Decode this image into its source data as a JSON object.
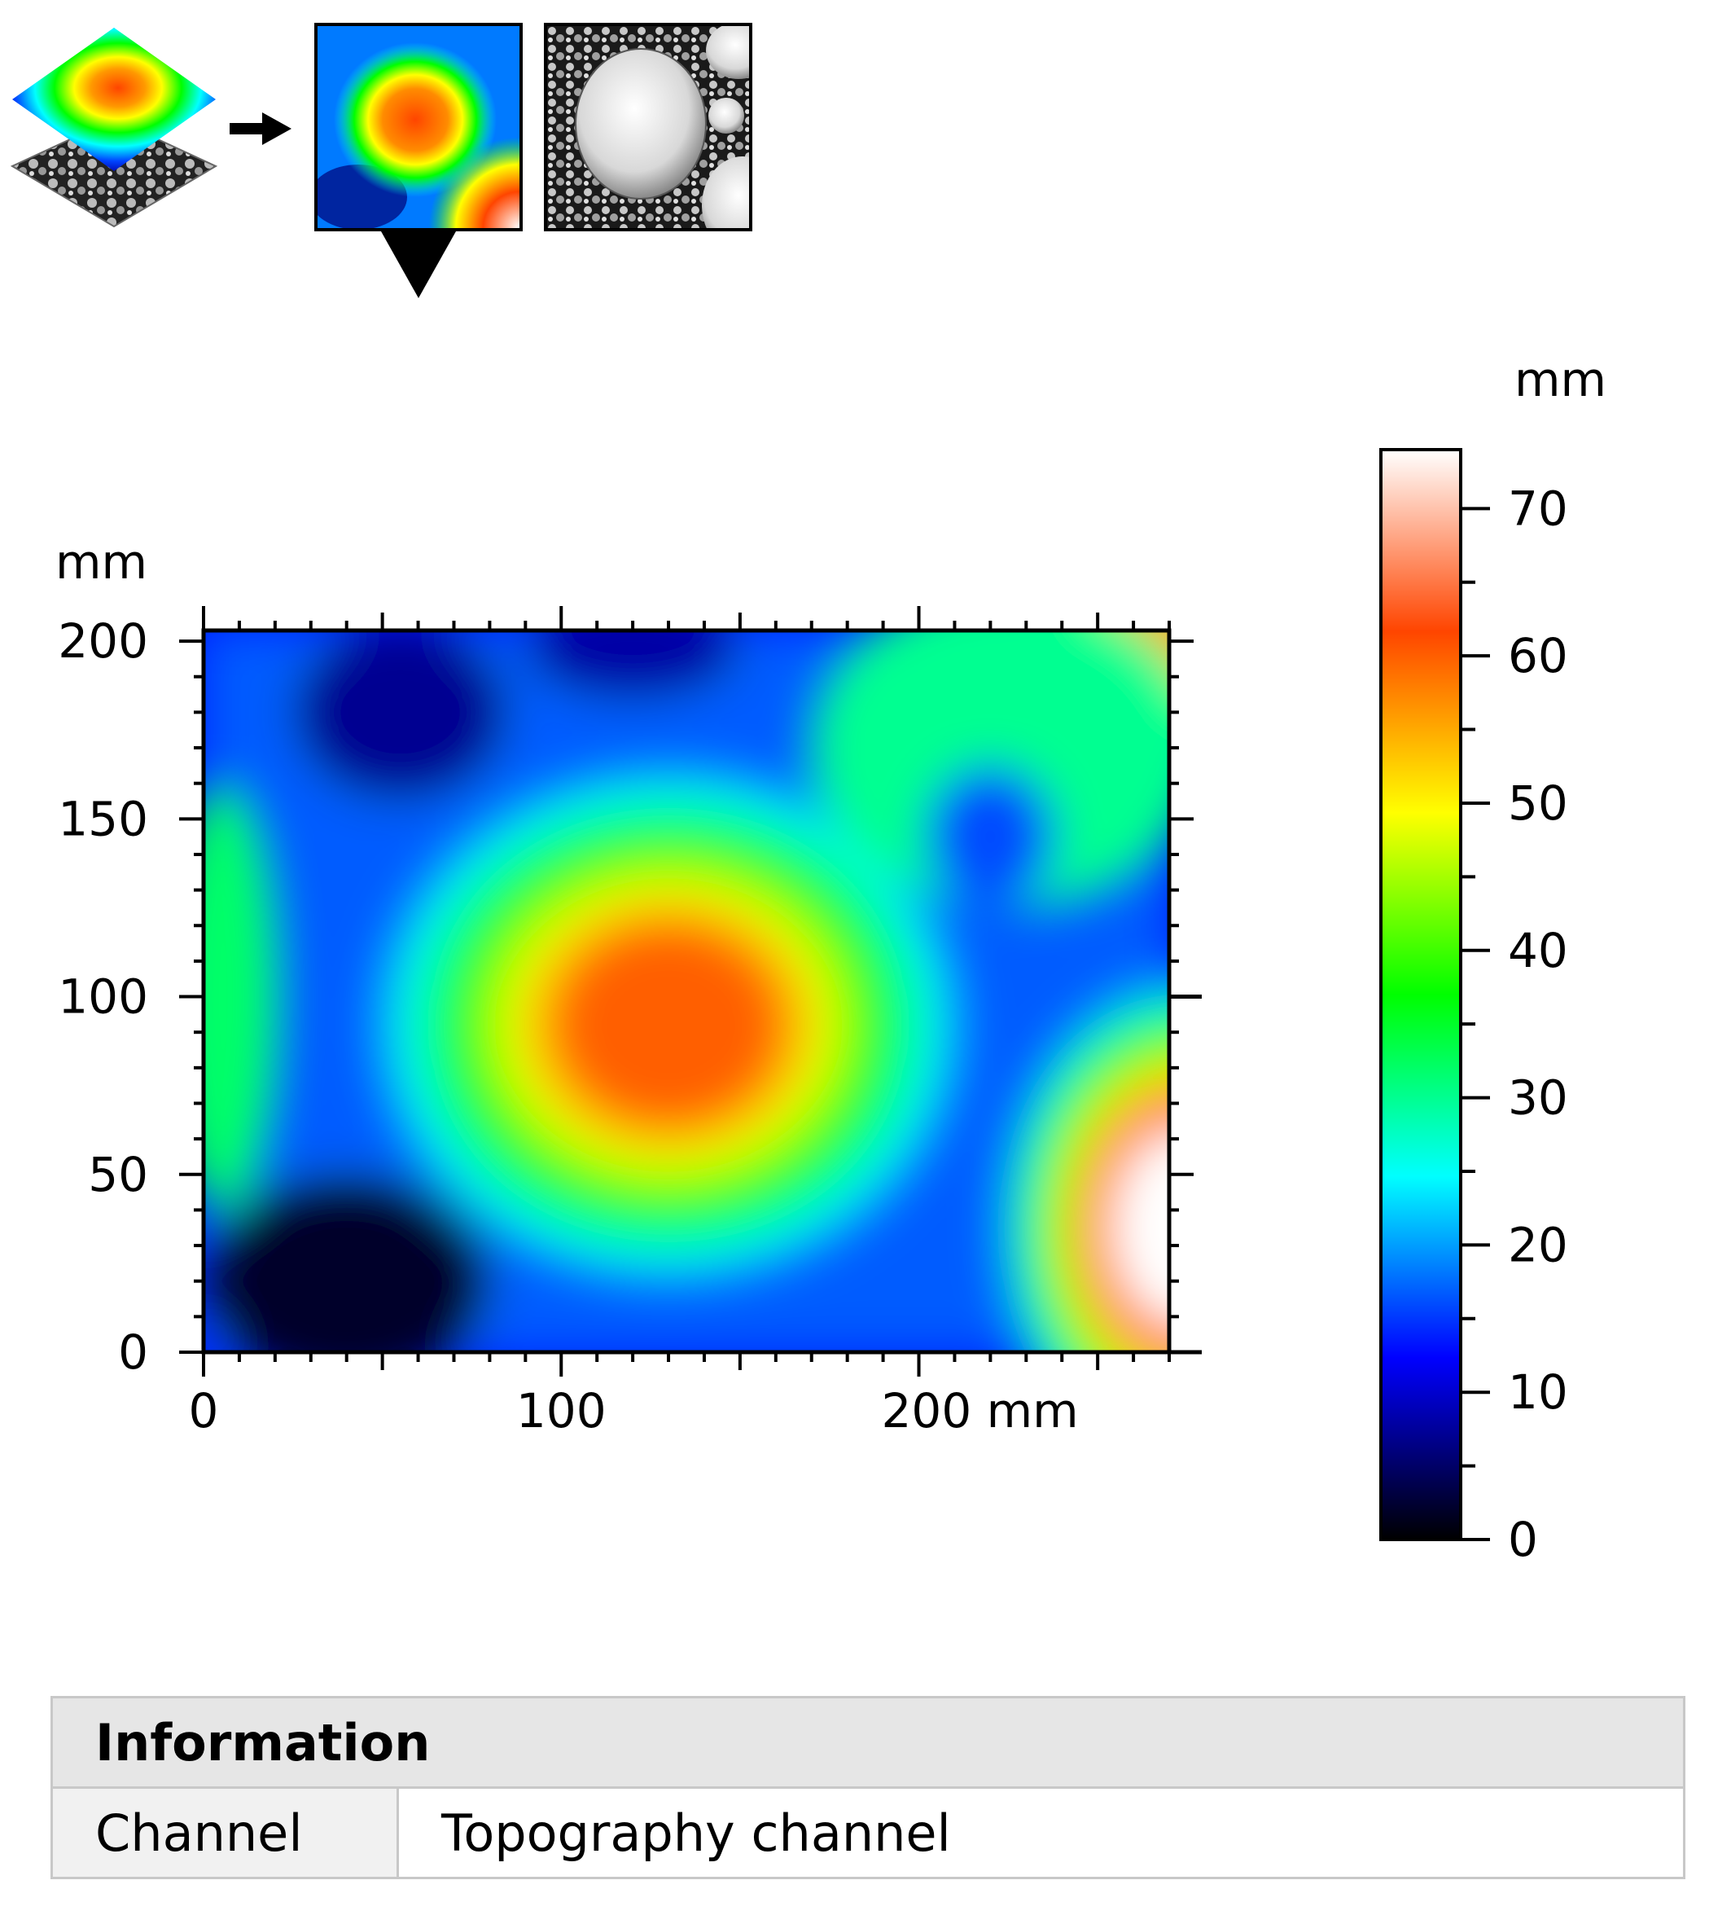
{
  "colors": {
    "colormap": [
      "#000000",
      "#0000ff",
      "#00ffff",
      "#00ff00",
      "#ffff00",
      "#ff4500",
      "#ffffff"
    ],
    "axis": "#000000",
    "table_header_bg": "#e6e6e6",
    "table_key_bg": "#f1f1f1",
    "table_border": "#c8c8c8"
  },
  "toolbar": {
    "layers_icon": "layers-icon",
    "arrow_icon": "arrow-right-icon",
    "selected_indicator_icon": "triangle-down-icon",
    "thumb_topography": "topography-thumbnail",
    "thumb_image": "grayscale-image-thumbnail"
  },
  "chart_data": {
    "type": "heatmap",
    "title": "",
    "x_unit": "mm",
    "y_unit": "mm",
    "xlim": [
      0,
      270
    ],
    "ylim": [
      0,
      203
    ],
    "x_ticks": [
      0,
      100,
      200
    ],
    "x_tick_labels": [
      "0",
      "100",
      "200 mm"
    ],
    "y_ticks": [
      0,
      50,
      100,
      150,
      200
    ],
    "y_tick_labels": [
      "0",
      "50",
      "100",
      "150",
      "200"
    ],
    "y_axis_label": "mm",
    "colorbar": {
      "label": "mm",
      "range": [
        0,
        74
      ],
      "ticks": [
        0,
        10,
        20,
        30,
        40,
        50,
        60,
        70
      ],
      "tick_labels": [
        "0",
        "10",
        "20",
        "30",
        "40",
        "50",
        "60",
        "70"
      ]
    },
    "features": [
      {
        "kind": "peak",
        "x": 130,
        "y": 92,
        "rx": 70,
        "ry": 62,
        "value": 60
      },
      {
        "kind": "peak",
        "x": 275,
        "y": 35,
        "rx": 45,
        "ry": 60,
        "value": 74
      },
      {
        "kind": "peak",
        "x": 272,
        "y": 205,
        "rx": 38,
        "ry": 34,
        "value": 55
      },
      {
        "kind": "ridge",
        "x": 5,
        "y": 100,
        "rx": 16,
        "ry": 60,
        "value": 32
      },
      {
        "kind": "ridge",
        "x": 225,
        "y": 170,
        "rx": 55,
        "ry": 45,
        "value": 30
      },
      {
        "kind": "valley",
        "x": 40,
        "y": 20,
        "rx": 40,
        "ry": 30,
        "value": 2
      },
      {
        "kind": "valley",
        "x": 55,
        "y": 180,
        "rx": 30,
        "ry": 25,
        "value": 7
      },
      {
        "kind": "valley",
        "x": 120,
        "y": 198,
        "rx": 30,
        "ry": 15,
        "value": 8
      },
      {
        "kind": "valley",
        "x": 220,
        "y": 145,
        "rx": 18,
        "ry": 20,
        "value": 16
      }
    ]
  },
  "info": {
    "header": "Information",
    "rows": [
      {
        "key": "Channel",
        "value": "Topography channel"
      }
    ]
  }
}
